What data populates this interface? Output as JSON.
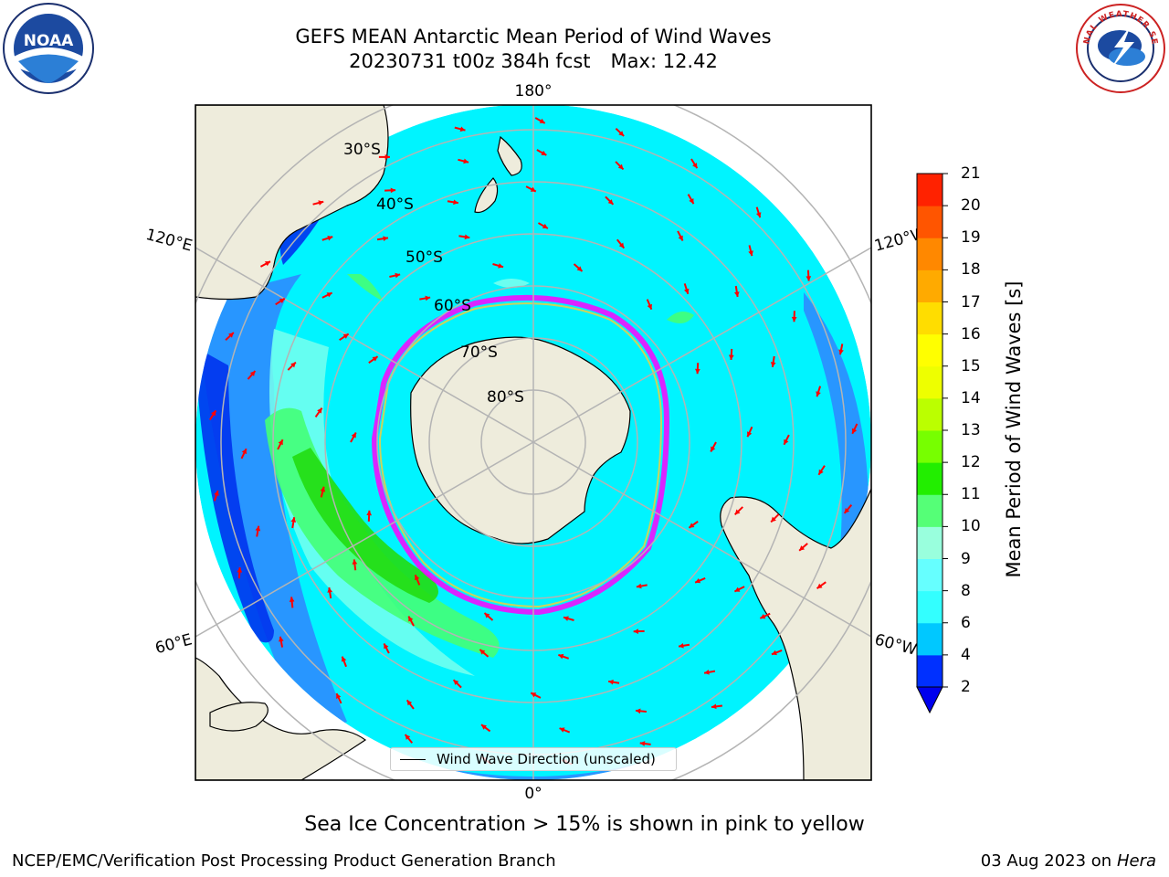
{
  "title": {
    "line1": "GEFS MEAN Antarctic Mean Period of Wind Waves",
    "run": "20230731 t00z 384h fcst",
    "max": "Max: 12.42"
  },
  "map": {
    "lon_labels": {
      "top": "180°",
      "bottom": "0°",
      "upper_left": "120°E",
      "upper_right": "120°W",
      "lower_left": "60°E",
      "lower_right": "60°W"
    },
    "lat_labels": [
      "30°S",
      "40°S",
      "50°S",
      "60°S",
      "70°S",
      "80°S"
    ],
    "colors": {
      "land": "#eeecdc",
      "ocean_bg": "#ffffff",
      "grid": "#b4b4b4",
      "arrow": "#ff0000",
      "ice": "#ff00ff"
    }
  },
  "legend": {
    "label": "Wind Wave Direction (unscaled)"
  },
  "colorbar": {
    "label": "Mean Period of Wind Waves [s]",
    "ticks": [
      "2",
      "4",
      "6",
      "8",
      "9",
      "10",
      "11",
      "12",
      "13",
      "14",
      "15",
      "16",
      "17",
      "18",
      "19",
      "20",
      "21"
    ],
    "colors": [
      "#0030ff",
      "#00c8ff",
      "#33ffff",
      "#66ffff",
      "#99ffdd",
      "#55ff77",
      "#22ee00",
      "#77ff00",
      "#bbff00",
      "#eeff00",
      "#ffff00",
      "#ffdd00",
      "#ffaa00",
      "#ff8800",
      "#ff5500",
      "#ff2200",
      "#ff0000"
    ],
    "under_color": "#0000ee"
  },
  "footnote": "Sea Ice Concentration > 15% is shown in pink to yellow",
  "footer": {
    "left": "NCEP/EMC/Verification Post Processing Product Generation Branch",
    "right_date": "03 Aug 2023 on",
    "right_host": "Hera"
  },
  "logos": {
    "noaa_text": "NOAA",
    "nws_text": "NATIONAL WEATHER SERVICE"
  }
}
